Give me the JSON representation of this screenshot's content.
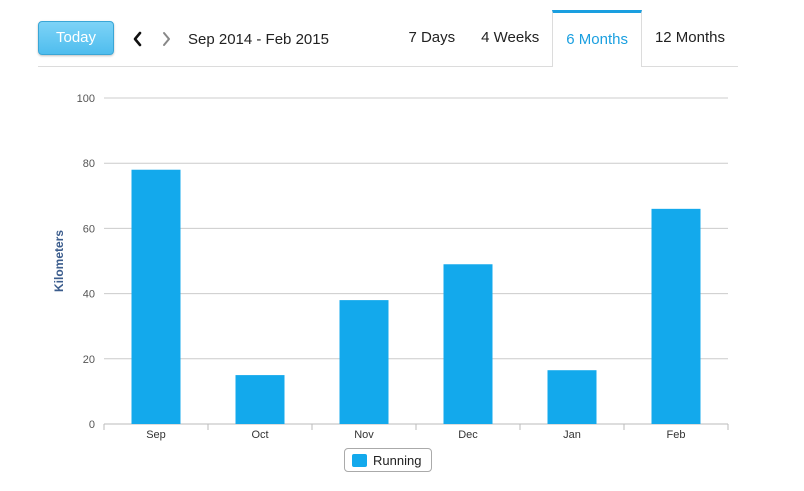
{
  "toolbar": {
    "today_label": "Today",
    "prev_icon": "chevron-left-icon",
    "next_icon": "chevron-right-icon",
    "date_range": "Sep 2014 - Feb 2015",
    "range_tabs": [
      {
        "label": "7 Days",
        "active": false
      },
      {
        "label": "4 Weeks",
        "active": false
      },
      {
        "label": "6 Months",
        "active": true
      },
      {
        "label": "12 Months",
        "active": false
      }
    ]
  },
  "colors": {
    "accent": "#1a9fe0",
    "bar": "#13a9ec",
    "today_button": "#4fbdee",
    "axis_label": "#3b5c8c",
    "grid": "#cccccc"
  },
  "chart_data": {
    "type": "bar",
    "categories": [
      "Sep",
      "Oct",
      "Nov",
      "Dec",
      "Jan",
      "Feb"
    ],
    "series": [
      {
        "name": "Running",
        "values": [
          78,
          15,
          38,
          49,
          16.5,
          66
        ]
      }
    ],
    "ylabel": "Kilometers",
    "xlabel": "",
    "ylim": [
      0,
      100
    ],
    "yticks": [
      0,
      20,
      40,
      60,
      80,
      100
    ],
    "grid": true,
    "legend_position": "bottom-center"
  }
}
